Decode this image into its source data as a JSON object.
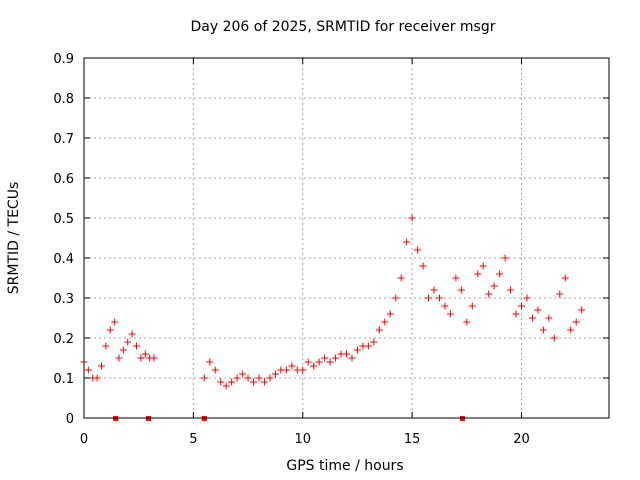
{
  "chart_data": {
    "type": "scatter",
    "title": "Day 206 of 2025, SRMTID for receiver msgr",
    "xlabel": "GPS time / hours",
    "ylabel": "SRMTID / TECUs",
    "xlim": [
      0,
      24
    ],
    "ylim": [
      0,
      0.9
    ],
    "xticks": [
      0,
      5,
      10,
      15,
      20
    ],
    "yticks": [
      0,
      0.1,
      0.2,
      0.3,
      0.4,
      0.5,
      0.6,
      0.7,
      0.8,
      0.9
    ],
    "grid": true,
    "marker": "plus",
    "color": "#ff0000",
    "gap_markers_x": [
      1.45,
      2.95,
      5.5,
      17.3
    ],
    "series": [
      {
        "name": "SRMTID",
        "segments": [
          {
            "x": [
              0.0,
              0.2,
              0.4,
              0.6,
              0.8,
              1.0,
              1.2,
              1.4,
              1.6,
              1.8,
              2.0,
              2.2,
              2.4,
              2.6,
              2.8,
              3.0,
              3.2
            ],
            "y": [
              0.14,
              0.12,
              0.1,
              0.1,
              0.13,
              0.18,
              0.22,
              0.24,
              0.15,
              0.17,
              0.19,
              0.21,
              0.18,
              0.15,
              0.16,
              0.15,
              0.15
            ]
          },
          {
            "x": [
              5.5,
              5.75,
              6.0,
              6.25,
              6.5,
              6.75,
              7.0,
              7.25,
              7.5,
              7.75,
              8.0,
              8.25,
              8.5,
              8.75,
              9.0,
              9.25,
              9.5,
              9.75,
              10.0,
              10.25,
              10.5,
              10.75,
              11.0,
              11.25,
              11.5,
              11.75,
              12.0,
              12.25,
              12.5,
              12.75,
              13.0,
              13.25,
              13.5,
              13.75,
              14.0,
              14.25,
              14.5,
              14.75,
              15.0,
              15.25,
              15.5,
              15.75,
              16.0,
              16.25,
              16.5,
              16.75,
              17.0,
              17.25,
              17.5,
              17.75,
              18.0,
              18.25,
              18.5,
              18.75,
              19.0,
              19.25,
              19.5,
              19.75,
              20.0,
              20.25,
              20.5,
              20.75,
              21.0,
              21.25,
              21.5,
              21.75,
              22.0,
              22.25,
              22.5,
              22.75
            ],
            "y": [
              0.1,
              0.14,
              0.12,
              0.09,
              0.08,
              0.09,
              0.1,
              0.11,
              0.1,
              0.09,
              0.1,
              0.09,
              0.1,
              0.11,
              0.12,
              0.12,
              0.13,
              0.12,
              0.12,
              0.14,
              0.13,
              0.14,
              0.15,
              0.14,
              0.15,
              0.16,
              0.16,
              0.15,
              0.17,
              0.18,
              0.18,
              0.19,
              0.22,
              0.24,
              0.26,
              0.3,
              0.35,
              0.44,
              0.5,
              0.42,
              0.38,
              0.3,
              0.32,
              0.3,
              0.28,
              0.26,
              0.35,
              0.32,
              0.24,
              0.28,
              0.36,
              0.38,
              0.31,
              0.33,
              0.36,
              0.4,
              0.32,
              0.26,
              0.28,
              0.3,
              0.25,
              0.27,
              0.22,
              0.25,
              0.2,
              0.31,
              0.35,
              0.22,
              0.24,
              0.27
            ]
          }
        ]
      }
    ]
  }
}
